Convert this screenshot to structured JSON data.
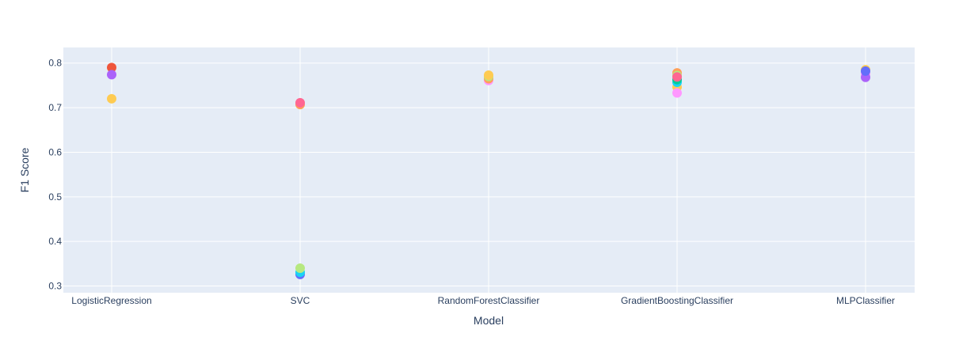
{
  "chart_data": {
    "type": "scatter",
    "title": "",
    "xlabel": "Model",
    "ylabel": "F1 Score",
    "categories": [
      "LogisticRegression",
      "SVC",
      "RandomForestClassifier",
      "GradientBoostingClassifier",
      "MLPClassifier"
    ],
    "ylim": [
      0.285,
      0.835
    ],
    "yticks": [
      0.3,
      0.4,
      0.5,
      0.6,
      0.7,
      0.8
    ],
    "ytick_labels": [
      "0.3",
      "0.4",
      "0.5",
      "0.6",
      "0.7",
      "0.8"
    ],
    "grid": true,
    "background": "#e5ecf6",
    "points": [
      {
        "x": "LogisticRegression",
        "y": 0.79,
        "color": "#ef553b"
      },
      {
        "x": "LogisticRegression",
        "y": 0.774,
        "color": "#ab63fa"
      },
      {
        "x": "LogisticRegression",
        "y": 0.72,
        "color": "#fecb52"
      },
      {
        "x": "SVC",
        "y": 0.707,
        "color": "#ffa15a"
      },
      {
        "x": "SVC",
        "y": 0.711,
        "color": "#ff6692"
      },
      {
        "x": "SVC",
        "y": 0.326,
        "color": "#636efa"
      },
      {
        "x": "SVC",
        "y": 0.331,
        "color": "#19d3f3"
      },
      {
        "x": "SVC",
        "y": 0.34,
        "color": "#b6e880"
      },
      {
        "x": "RandomForestClassifier",
        "y": 0.761,
        "color": "#ff97ff"
      },
      {
        "x": "RandomForestClassifier",
        "y": 0.765,
        "color": "#ffa15a"
      },
      {
        "x": "RandomForestClassifier",
        "y": 0.77,
        "color": "#b6e880"
      },
      {
        "x": "RandomForestClassifier",
        "y": 0.773,
        "color": "#fecb52"
      },
      {
        "x": "GradientBoostingClassifier",
        "y": 0.778,
        "color": "#ffa15a"
      },
      {
        "x": "GradientBoostingClassifier",
        "y": 0.772,
        "color": "#b6e880"
      },
      {
        "x": "GradientBoostingClassifier",
        "y": 0.746,
        "color": "#fecb52"
      },
      {
        "x": "GradientBoostingClassifier",
        "y": 0.733,
        "color": "#ff97ff"
      },
      {
        "x": "GradientBoostingClassifier",
        "y": 0.757,
        "color": "#19d3f3"
      },
      {
        "x": "GradientBoostingClassifier",
        "y": 0.763,
        "color": "#00cc96"
      },
      {
        "x": "GradientBoostingClassifier",
        "y": 0.769,
        "color": "#ff6692"
      },
      {
        "x": "MLPClassifier",
        "y": 0.785,
        "color": "#fecb52"
      },
      {
        "x": "MLPClassifier",
        "y": 0.777,
        "color": "#ff97ff"
      },
      {
        "x": "MLPClassifier",
        "y": 0.768,
        "color": "#ab63fa"
      },
      {
        "x": "MLPClassifier",
        "y": 0.782,
        "color": "#636efa"
      }
    ]
  }
}
